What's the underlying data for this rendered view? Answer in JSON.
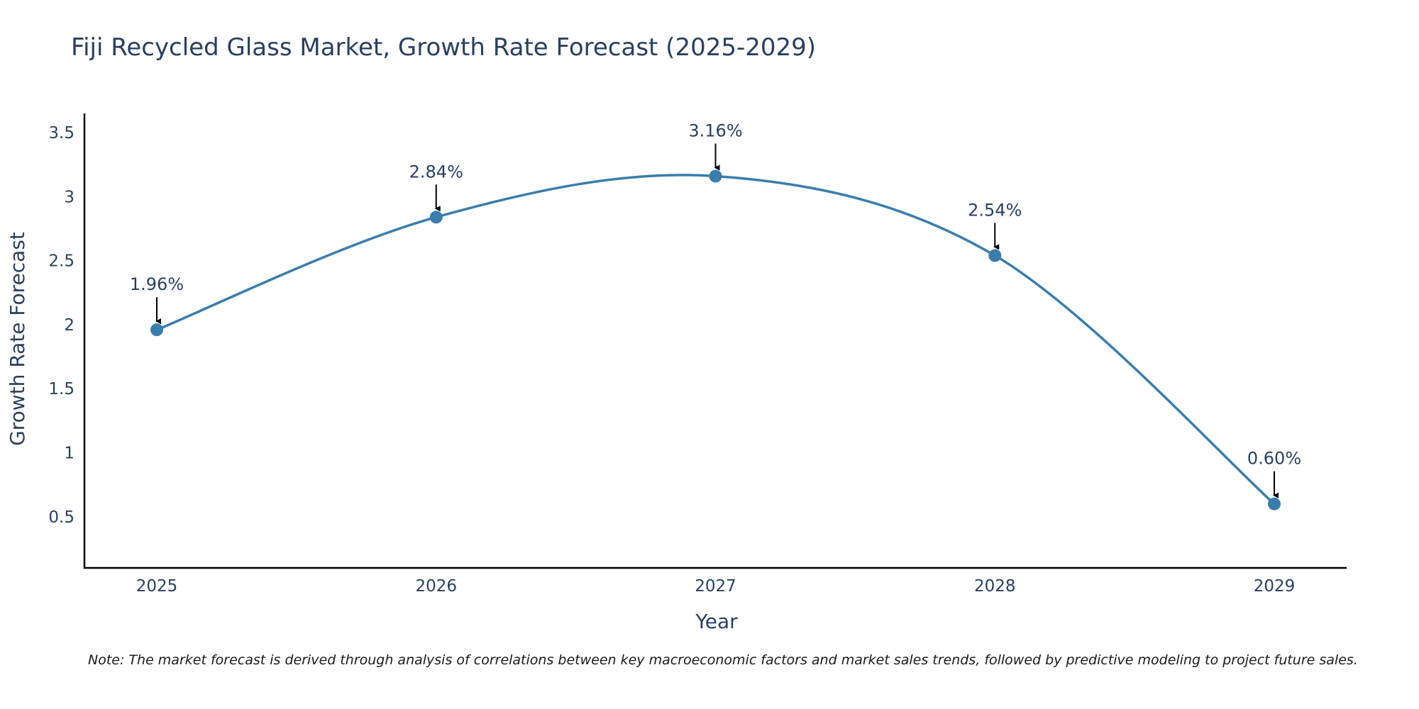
{
  "chart_data": {
    "type": "line",
    "title": "Fiji Recycled Glass Market, Growth Rate Forecast (2025-2029)",
    "xlabel": "Year",
    "ylabel": "Growth Rate Forecast",
    "categories": [
      "2025",
      "2026",
      "2027",
      "2028",
      "2029"
    ],
    "series": [
      {
        "name": "Growth Rate Forecast",
        "values": [
          1.96,
          2.84,
          3.16,
          2.54,
          0.6
        ],
        "labels": [
          "1.96%",
          "2.84%",
          "3.16%",
          "2.54%",
          "0.60%"
        ]
      }
    ],
    "y_ticks": [
      0.5,
      1,
      1.5,
      2,
      2.5,
      3,
      3.5
    ],
    "y_tick_labels": [
      "0.5",
      "1",
      "1.5",
      "2",
      "2.5",
      "3",
      "3.5"
    ],
    "ylim": [
      0.1,
      3.65
    ],
    "line_shape": "spline",
    "grid": false,
    "line_color": "#3a7dab",
    "marker_color": "#3a7dab",
    "axis_color": "#000000",
    "arrow_color": "#000000"
  },
  "note": "Note: The market forecast is derived through analysis of correlations between key macroeconomic factors and market sales trends, followed by predictive modeling to project future sales."
}
